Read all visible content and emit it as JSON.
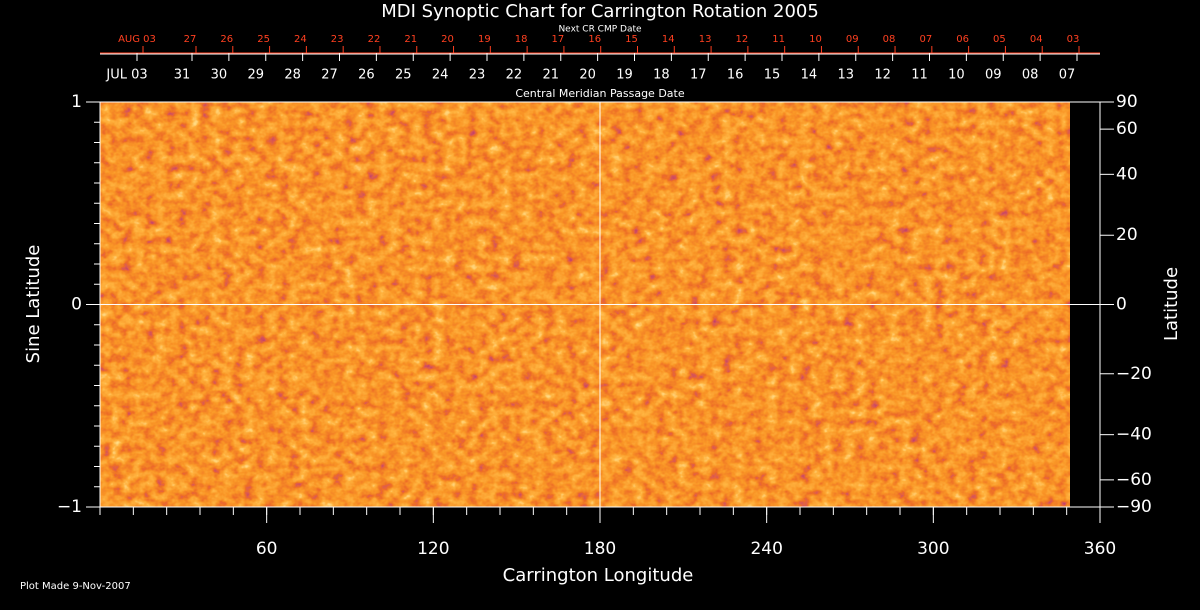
{
  "chart_data": {
    "type": "synoptic-map",
    "title": "MDI Synoptic Chart for Carrington Rotation 2005",
    "top_axis_title": "Next CR CMP Date",
    "top_axis_labels": [
      "AUG 03",
      "27",
      "26",
      "25",
      "24",
      "23",
      "22",
      "21",
      "20",
      "19",
      "18",
      "17",
      "16",
      "15",
      "14",
      "13",
      "12",
      "11",
      "10",
      "09",
      "08",
      "07",
      "06",
      "05",
      "04",
      "03"
    ],
    "top_axis_color": "#ff4020",
    "cmp_axis_labels": [
      "JUL 03",
      "31",
      "30",
      "29",
      "28",
      "27",
      "26",
      "25",
      "24",
      "23",
      "22",
      "21",
      "20",
      "19",
      "18",
      "17",
      "16",
      "15",
      "14",
      "13",
      "12",
      "11",
      "10",
      "09",
      "08",
      "07"
    ],
    "cmp_axis_title": "Central Meridian Passage Date",
    "xlabel": "Carrington Longitude",
    "xlim": [
      0,
      360
    ],
    "xticks": [
      60,
      120,
      180,
      240,
      300,
      360
    ],
    "ylabel": "Sine Latitude",
    "ylim": [
      -1,
      1
    ],
    "yticks": [
      {
        "value": -1,
        "label": "−1"
      },
      0,
      1
    ],
    "y2label": "Latitude",
    "y2scale": "sine",
    "y2lim": [
      -90,
      90
    ],
    "y2ticks": [
      90,
      60,
      40,
      20,
      0,
      {
        "value": -20,
        "label": "−20"
      },
      {
        "value": -40,
        "label": "−40"
      },
      {
        "value": -60,
        "label": "−60"
      },
      {
        "value": -90,
        "label": "−90"
      }
    ],
    "grid_lines": [
      0,
      180
    ],
    "footer": "Plot Made  9-Nov-2007"
  }
}
